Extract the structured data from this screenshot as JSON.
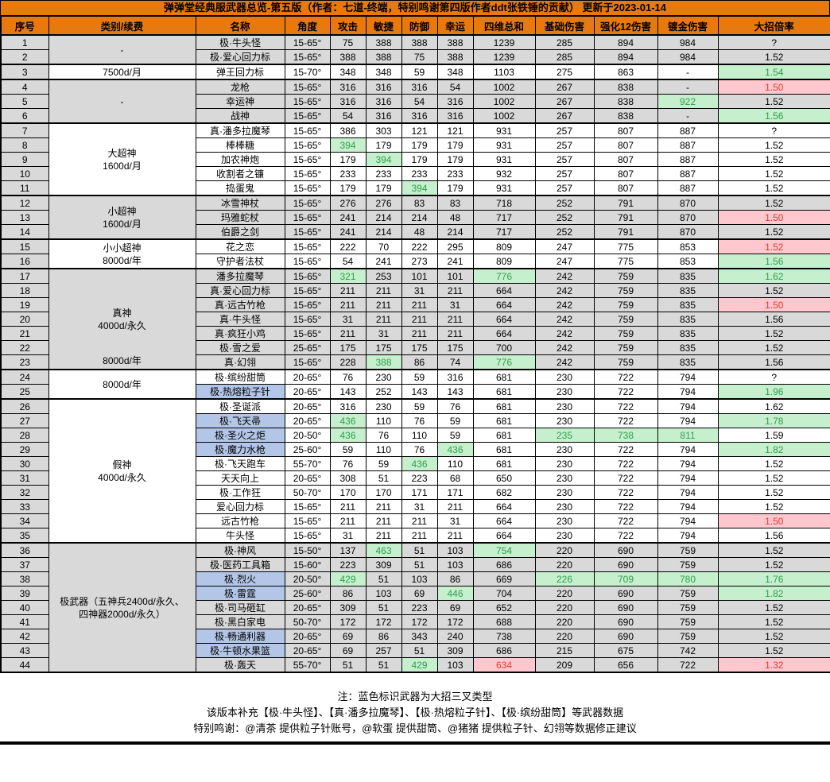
{
  "title": "弹弹堂经典服武器总览-第五版（作者：七道-终端，特别鸣谢第四版作者ddt张铁锤的贡献） 更新于2023-01-14",
  "columns": [
    "序号",
    "类别/续费",
    "名称",
    "角度",
    "攻击",
    "敏捷",
    "防御",
    "幸运",
    "四维总和",
    "基础伤害",
    "强化12伤害",
    "镀金伤害",
    "大招倍率"
  ],
  "colors": {
    "header_orange": "#e8790f",
    "block_grey": "#d9d9d9",
    "highlight_green_bg": "#c6efce",
    "highlight_green_text": "#2f9e4e",
    "highlight_red_bg": "#ffc7ce",
    "highlight_red_text": "#e23b2e",
    "tri_fork_blue_bg": "#b4c6e7"
  },
  "groups": [
    {
      "bg": "grey",
      "category": "-",
      "sub": "",
      "rows": [
        {
          "c": [
            "1",
            "极·牛头怪",
            "15-65°",
            "75",
            "388",
            "388",
            "388",
            "1239",
            "285",
            "894",
            "984",
            "?"
          ],
          "blue": false,
          "hl": {}
        },
        {
          "c": [
            "2",
            "极·爱心回力标",
            "15-65°",
            "388",
            "388",
            "75",
            "388",
            "1239",
            "285",
            "894",
            "984",
            "1.52"
          ],
          "blue": false,
          "hl": {}
        }
      ]
    },
    {
      "bg": "white",
      "category": "7500d/月",
      "sub": "",
      "rows": [
        {
          "c": [
            "3",
            "弹王回力标",
            "15-70°",
            "348",
            "348",
            "59",
            "348",
            "1103",
            "275",
            "863",
            "-",
            "1.54"
          ],
          "blue": false,
          "hl": {
            "11": "green"
          }
        }
      ]
    },
    {
      "bg": "grey",
      "category": "-",
      "sub": "",
      "rows": [
        {
          "c": [
            "4",
            "龙枪",
            "15-65°",
            "316",
            "316",
            "316",
            "54",
            "1002",
            "267",
            "838",
            "-",
            "1.50"
          ],
          "blue": false,
          "hl": {
            "11": "red"
          }
        },
        {
          "c": [
            "5",
            "幸运神",
            "15-65°",
            "316",
            "316",
            "54",
            "316",
            "1002",
            "267",
            "838",
            "922",
            "1.52"
          ],
          "blue": false,
          "hl": {
            "10": "green"
          }
        },
        {
          "c": [
            "6",
            "战神",
            "15-65°",
            "54",
            "316",
            "316",
            "316",
            "1002",
            "267",
            "838",
            "-",
            "1.56"
          ],
          "blue": false,
          "hl": {
            "11": "green"
          }
        }
      ]
    },
    {
      "bg": "white",
      "category": "大超神\n1600d/月",
      "sub": "",
      "rows": [
        {
          "c": [
            "7",
            "真·潘多拉魔琴",
            "15-65°",
            "386",
            "303",
            "121",
            "121",
            "931",
            "257",
            "807",
            "887",
            "?"
          ],
          "blue": false,
          "hl": {}
        },
        {
          "c": [
            "8",
            "棒棒糖",
            "15-65°",
            "394",
            "179",
            "179",
            "179",
            "931",
            "257",
            "807",
            "887",
            "1.52"
          ],
          "blue": false,
          "hl": {
            "3": "green"
          }
        },
        {
          "c": [
            "9",
            "加农神炮",
            "15-65°",
            "179",
            "394",
            "179",
            "179",
            "931",
            "257",
            "807",
            "887",
            "1.52"
          ],
          "blue": false,
          "hl": {
            "4": "green"
          }
        },
        {
          "c": [
            "10",
            "收割者之镰",
            "15-65°",
            "233",
            "233",
            "233",
            "233",
            "932",
            "257",
            "807",
            "887",
            "1.52"
          ],
          "blue": false,
          "hl": {}
        },
        {
          "c": [
            "11",
            "捣蛋鬼",
            "15-65°",
            "179",
            "179",
            "394",
            "179",
            "931",
            "257",
            "807",
            "887",
            "1.52"
          ],
          "blue": false,
          "hl": {
            "5": "green"
          }
        }
      ]
    },
    {
      "bg": "grey",
      "category": "小超神\n1600d/月",
      "sub": "",
      "rows": [
        {
          "c": [
            "12",
            "冰雪神杖",
            "15-65°",
            "276",
            "276",
            "83",
            "83",
            "718",
            "252",
            "791",
            "870",
            "1.52"
          ],
          "blue": false,
          "hl": {}
        },
        {
          "c": [
            "13",
            "玛雅蛇杖",
            "15-65°",
            "241",
            "214",
            "214",
            "48",
            "717",
            "252",
            "791",
            "870",
            "1.50"
          ],
          "blue": false,
          "hl": {
            "11": "red"
          }
        },
        {
          "c": [
            "14",
            "伯爵之剑",
            "15-65°",
            "241",
            "214",
            "48",
            "214",
            "717",
            "252",
            "791",
            "870",
            "1.52"
          ],
          "blue": false,
          "hl": {}
        }
      ]
    },
    {
      "bg": "white",
      "category": "小小超神\n8000d/年",
      "sub": "",
      "rows": [
        {
          "c": [
            "15",
            "花之恋",
            "15-65°",
            "222",
            "70",
            "222",
            "295",
            "809",
            "247",
            "775",
            "853",
            "1.52"
          ],
          "blue": false,
          "hl": {
            "11": "red"
          }
        },
        {
          "c": [
            "16",
            "守护者法杖",
            "15-65°",
            "54",
            "241",
            "273",
            "241",
            "809",
            "247",
            "775",
            "853",
            "1.56"
          ],
          "blue": false,
          "hl": {
            "11": "green"
          }
        }
      ]
    },
    {
      "bg": "grey",
      "category": "真神\n4000d/永久",
      "sub": "8000d/年",
      "rows": [
        {
          "c": [
            "17",
            "潘多拉魔琴",
            "15-65°",
            "321",
            "253",
            "101",
            "101",
            "776",
            "242",
            "759",
            "835",
            "1.62"
          ],
          "blue": false,
          "hl": {
            "3": "green",
            "7": "green",
            "11": "green"
          }
        },
        {
          "c": [
            "18",
            "真·爱心回力标",
            "15-65°",
            "211",
            "211",
            "31",
            "211",
            "664",
            "242",
            "759",
            "835",
            "1.52"
          ],
          "blue": false,
          "hl": {}
        },
        {
          "c": [
            "19",
            "真·远古竹枪",
            "15-65°",
            "211",
            "211",
            "211",
            "31",
            "664",
            "242",
            "759",
            "835",
            "1.50"
          ],
          "blue": false,
          "hl": {
            "11": "red"
          }
        },
        {
          "c": [
            "20",
            "真·牛头怪",
            "15-65°",
            "31",
            "211",
            "211",
            "211",
            "664",
            "242",
            "759",
            "835",
            "1.56"
          ],
          "blue": false,
          "hl": {}
        },
        {
          "c": [
            "21",
            "真·疯狂小鸡",
            "15-65°",
            "211",
            "31",
            "211",
            "211",
            "664",
            "242",
            "759",
            "835",
            "1.52"
          ],
          "blue": false,
          "hl": {}
        },
        {
          "c": [
            "22",
            "极·雪之爱",
            "25-65°",
            "175",
            "175",
            "175",
            "175",
            "700",
            "242",
            "759",
            "835",
            "1.52"
          ],
          "blue": false,
          "hl": {}
        },
        {
          "c": [
            "23",
            "真·幻翎",
            "15-65°",
            "228",
            "388",
            "86",
            "74",
            "776",
            "242",
            "759",
            "835",
            "1.56"
          ],
          "blue": false,
          "hl": {
            "4": "green",
            "7": "green"
          }
        }
      ]
    },
    {
      "bg": "white",
      "category": "8000d/年",
      "sub": "",
      "rows": [
        {
          "c": [
            "24",
            "极·缤纷甜筒",
            "20-65°",
            "76",
            "230",
            "59",
            "316",
            "681",
            "230",
            "722",
            "794",
            "?"
          ],
          "blue": false,
          "hl": {}
        },
        {
          "c": [
            "25",
            "极·热熔粒子针",
            "20-65°",
            "143",
            "252",
            "143",
            "143",
            "681",
            "230",
            "722",
            "794",
            "1.96"
          ],
          "blue": true,
          "hl": {
            "11": "green"
          }
        }
      ]
    },
    {
      "bg": "white",
      "category": "假神\n4000d/永久",
      "sub": "",
      "rows": [
        {
          "c": [
            "26",
            "极·圣诞派",
            "20-65°",
            "316",
            "230",
            "59",
            "76",
            "681",
            "230",
            "722",
            "794",
            "1.62"
          ],
          "blue": false,
          "hl": {}
        },
        {
          "c": [
            "27",
            "极·飞天帚",
            "20-65°",
            "436",
            "110",
            "76",
            "59",
            "681",
            "230",
            "722",
            "794",
            "1.78"
          ],
          "blue": true,
          "hl": {
            "3": "green",
            "11": "green"
          }
        },
        {
          "c": [
            "28",
            "极·圣火之炬",
            "20-50°",
            "436",
            "76",
            "110",
            "59",
            "681",
            "235",
            "738",
            "811",
            "1.59"
          ],
          "blue": true,
          "hl": {
            "3": "green",
            "8": "green",
            "9": "green",
            "10": "green"
          }
        },
        {
          "c": [
            "29",
            "极·魔力水枪",
            "25-60°",
            "59",
            "110",
            "76",
            "436",
            "681",
            "230",
            "722",
            "794",
            "1.82"
          ],
          "blue": true,
          "hl": {
            "6": "green",
            "11": "green"
          }
        },
        {
          "c": [
            "30",
            "极·飞天跑车",
            "55-70°",
            "76",
            "59",
            "436",
            "110",
            "681",
            "230",
            "722",
            "794",
            "1.52"
          ],
          "blue": false,
          "hl": {
            "5": "green"
          }
        },
        {
          "c": [
            "31",
            "天天向上",
            "20-65°",
            "308",
            "51",
            "223",
            "68",
            "650",
            "230",
            "722",
            "794",
            "1.52"
          ],
          "blue": false,
          "hl": {}
        },
        {
          "c": [
            "32",
            "极·工作狂",
            "50-70°",
            "170",
            "170",
            "171",
            "171",
            "682",
            "230",
            "722",
            "794",
            "1.52"
          ],
          "blue": false,
          "hl": {}
        },
        {
          "c": [
            "33",
            "爱心回力标",
            "15-65°",
            "211",
            "211",
            "31",
            "211",
            "664",
            "230",
            "722",
            "794",
            "1.52"
          ],
          "blue": false,
          "hl": {}
        },
        {
          "c": [
            "34",
            "远古竹枪",
            "15-65°",
            "211",
            "211",
            "211",
            "31",
            "664",
            "230",
            "722",
            "794",
            "1.50"
          ],
          "blue": false,
          "hl": {
            "11": "red"
          }
        },
        {
          "c": [
            "35",
            "牛头怪",
            "15-65°",
            "31",
            "211",
            "211",
            "211",
            "664",
            "230",
            "722",
            "794",
            "1.56"
          ],
          "blue": false,
          "hl": {}
        }
      ]
    },
    {
      "bg": "grey",
      "category": "极武器（五神兵2400d/永久、\n四神器2000d/永久）",
      "sub": "",
      "rows": [
        {
          "c": [
            "36",
            "极·神风",
            "15-50°",
            "137",
            "463",
            "51",
            "103",
            "754",
            "220",
            "690",
            "759",
            "1.52"
          ],
          "blue": false,
          "hl": {
            "4": "green",
            "7": "green"
          }
        },
        {
          "c": [
            "37",
            "极·医药工具箱",
            "15-60°",
            "223",
            "309",
            "51",
            "103",
            "686",
            "220",
            "690",
            "759",
            "1.52"
          ],
          "blue": false,
          "hl": {}
        },
        {
          "c": [
            "38",
            "极·烈火",
            "20-50°",
            "429",
            "51",
            "103",
            "86",
            "669",
            "226",
            "709",
            "780",
            "1.76"
          ],
          "blue": true,
          "hl": {
            "3": "green",
            "8": "green",
            "9": "green",
            "10": "green",
            "11": "green"
          }
        },
        {
          "c": [
            "39",
            "极·雷霆",
            "25-60°",
            "86",
            "103",
            "69",
            "446",
            "704",
            "220",
            "690",
            "759",
            "1.82"
          ],
          "blue": true,
          "hl": {
            "6": "green",
            "11": "green"
          }
        },
        {
          "c": [
            "40",
            "极·司马砸缸",
            "20-65°",
            "309",
            "51",
            "223",
            "69",
            "652",
            "220",
            "690",
            "759",
            "1.52"
          ],
          "blue": false,
          "hl": {}
        },
        {
          "c": [
            "41",
            "极·黑白家电",
            "50-70°",
            "172",
            "172",
            "172",
            "172",
            "688",
            "220",
            "690",
            "759",
            "1.52"
          ],
          "blue": false,
          "hl": {}
        },
        {
          "c": [
            "42",
            "极·畅通利器",
            "20-65°",
            "69",
            "86",
            "343",
            "240",
            "738",
            "220",
            "690",
            "759",
            "1.52"
          ],
          "blue": true,
          "hl": {}
        },
        {
          "c": [
            "43",
            "极·牛顿水果篮",
            "20-65°",
            "69",
            "257",
            "51",
            "309",
            "686",
            "215",
            "675",
            "742",
            "1.52"
          ],
          "blue": true,
          "hl": {}
        },
        {
          "c": [
            "44",
            "极·轰天",
            "55-70°",
            "51",
            "51",
            "429",
            "103",
            "634",
            "209",
            "656",
            "722",
            "1.32"
          ],
          "blue": false,
          "hl": {
            "5": "green",
            "7": "red",
            "11": "red"
          }
        }
      ]
    }
  ],
  "footer": {
    "note": "注：蓝色标识武器为大招三叉类型",
    "supplement": "该版本补充【极·牛头怪】、【真·潘多拉魔琴】、【极·热熔粒子针】、【极·缤纷甜筒】等武器数据",
    "thanks": "特别鸣谢：@清茶 提供粒子针账号，@软蛋 提供甜筒、@猪猪 提供粒子针、幻翎等数据修正建议"
  }
}
